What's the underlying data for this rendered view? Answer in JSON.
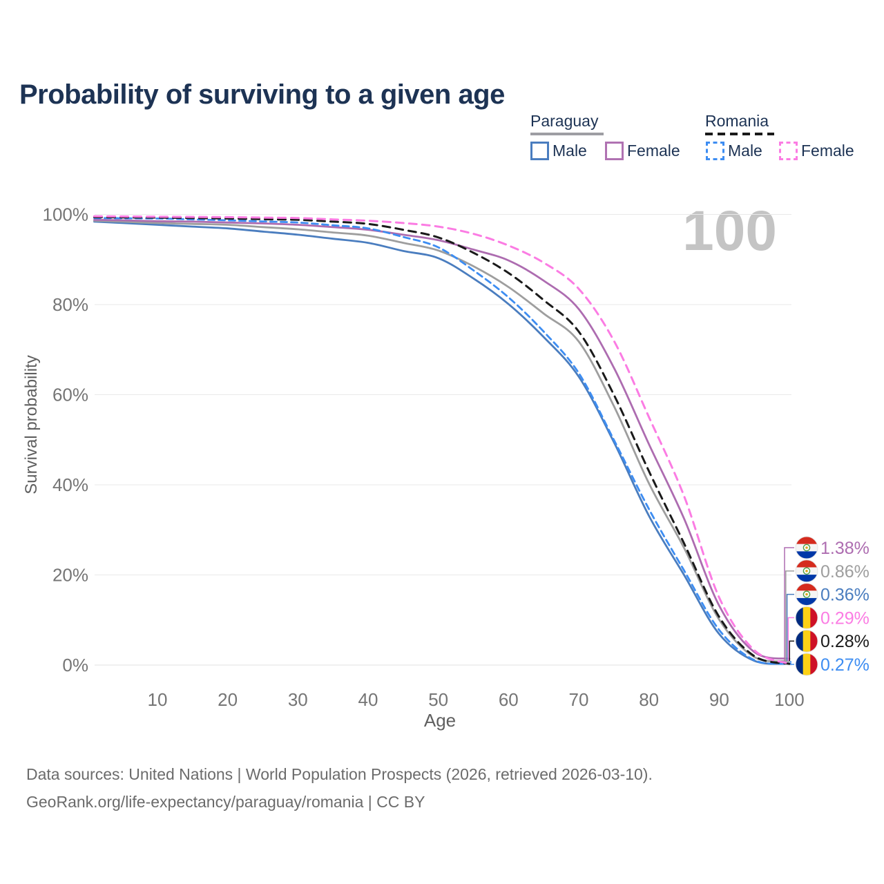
{
  "title": "Probability of surviving to a given age",
  "watermark": "100",
  "legend": {
    "groups": [
      {
        "name": "Paraguay",
        "line_style": "solid",
        "line_color": "#9e9ea3",
        "items": [
          {
            "label": "Male",
            "color": "#4a7dbf"
          },
          {
            "label": "Female",
            "color": "#b072b2"
          }
        ]
      },
      {
        "name": "Romania",
        "line_style": "dashed",
        "line_color": "#1a1a1a",
        "items": [
          {
            "label": "Male",
            "color": "#3d8df2"
          },
          {
            "label": "Female",
            "color": "#fb7ce3"
          }
        ]
      }
    ]
  },
  "chart_data": {
    "type": "line",
    "title": "Probability of surviving to a given age",
    "xlabel": "Age",
    "ylabel": "Survival probability",
    "xlim": [
      0,
      100
    ],
    "ylim": [
      0,
      100
    ],
    "grid": "horizontal-only",
    "legend_position": "top-right",
    "ages": [
      1,
      5,
      10,
      15,
      20,
      25,
      30,
      35,
      40,
      45,
      50,
      55,
      60,
      65,
      70,
      75,
      80,
      85,
      90,
      95,
      100
    ],
    "x_ticks": [
      10,
      20,
      30,
      40,
      50,
      60,
      70,
      80,
      90,
      100
    ],
    "y_ticks": [
      {
        "value": 0,
        "label": "0%"
      },
      {
        "value": 20,
        "label": "20%"
      },
      {
        "value": 40,
        "label": "40%"
      },
      {
        "value": 60,
        "label": "60%"
      },
      {
        "value": 80,
        "label": "80%"
      },
      {
        "value": 100,
        "label": "100%"
      }
    ],
    "series": [
      {
        "name": "Paraguay Male",
        "country": "Paraguay",
        "sex": "male",
        "color": "#4a7dbf",
        "dash": null,
        "width": 2.8,
        "values": [
          98.4,
          98.1,
          97.7,
          97.3,
          96.9,
          96.2,
          95.5,
          94.6,
          93.7,
          91.9,
          90.3,
          85.8,
          80.1,
          72.8,
          64.0,
          49.5,
          33.1,
          20.0,
          6.9,
          0.95,
          0.36
        ]
      },
      {
        "name": "Paraguay Average",
        "country": "Paraguay",
        "sex": "both",
        "color": "#9e9e9e",
        "dash": null,
        "width": 2.8,
        "values": [
          98.6,
          98.4,
          98.1,
          97.9,
          97.7,
          97.2,
          96.7,
          96.0,
          95.3,
          93.7,
          92.0,
          88.5,
          83.9,
          78.0,
          71.8,
          57.5,
          40.3,
          26.0,
          10.1,
          1.8,
          0.86
        ]
      },
      {
        "name": "Paraguay Female",
        "country": "Paraguay",
        "sex": "female",
        "color": "#ad6cb0",
        "dash": null,
        "width": 2.8,
        "values": [
          98.8,
          98.7,
          98.5,
          98.4,
          98.2,
          98.0,
          97.7,
          97.2,
          96.6,
          95.5,
          94.3,
          92.2,
          89.8,
          85.3,
          79.0,
          66.0,
          49.0,
          32.5,
          13.2,
          2.9,
          1.38
        ]
      },
      {
        "name": "Romania Male",
        "country": "Romania",
        "sex": "male",
        "color": "#3d8df2",
        "dash": "9 6",
        "width": 2.8,
        "values": [
          99.2,
          99.15,
          99.1,
          98.9,
          98.7,
          98.45,
          98.2,
          97.6,
          96.9,
          95.0,
          92.7,
          87.6,
          81.6,
          74.0,
          64.8,
          50.0,
          34.6,
          21.0,
          7.8,
          1.1,
          0.27
        ]
      },
      {
        "name": "Romania Average",
        "country": "Romania",
        "sex": "both",
        "color": "#1a1a1a",
        "dash": "11 8",
        "width": 3,
        "values": [
          99.4,
          99.35,
          99.3,
          99.2,
          99.1,
          98.95,
          98.8,
          98.4,
          97.9,
          96.6,
          94.9,
          91.5,
          87.0,
          81.0,
          74.0,
          60.0,
          43.0,
          27.0,
          10.7,
          2.0,
          0.28
        ]
      },
      {
        "name": "Romania Female",
        "country": "Romania",
        "sex": "female",
        "color": "#fb7ce3",
        "dash": "11 8",
        "width": 3,
        "values": [
          99.6,
          99.55,
          99.5,
          99.45,
          99.4,
          99.3,
          99.2,
          98.9,
          98.6,
          98.1,
          97.3,
          95.7,
          93.1,
          89.3,
          83.5,
          72.0,
          55.0,
          37.5,
          15.0,
          3.3,
          0.29
        ]
      }
    ],
    "end_labels": [
      {
        "value": "1.38%",
        "series": "Paraguay Female",
        "flag": "paraguay",
        "color": "#ad6cb0"
      },
      {
        "value": "0.86%",
        "series": "Paraguay Average",
        "flag": "paraguay",
        "color": "#9e9e9e"
      },
      {
        "value": "0.36%",
        "series": "Paraguay Male",
        "flag": "paraguay",
        "color": "#4a7dbf"
      },
      {
        "value": "0.29%",
        "series": "Romania Female",
        "flag": "romania",
        "color": "#fb7ce3"
      },
      {
        "value": "0.28%",
        "series": "Romania Average",
        "flag": "romania",
        "color": "#1a1a1a"
      },
      {
        "value": "0.27%",
        "series": "Romania Male",
        "flag": "romania",
        "color": "#3d8df2"
      }
    ],
    "flag_colors": {
      "paraguay": [
        "#d52b1e",
        "#f5f5f5",
        "#0038a8"
      ],
      "romania": [
        "#002b7f",
        "#fcd116",
        "#ce1126"
      ]
    },
    "watermark_age": "100"
  },
  "footer": {
    "line1": "Data sources: United Nations | World Population Prospects (2026, retrieved 2026-03-10).",
    "line2": "GeoRank.org/life-expectancy/paraguay/romania | CC BY"
  }
}
